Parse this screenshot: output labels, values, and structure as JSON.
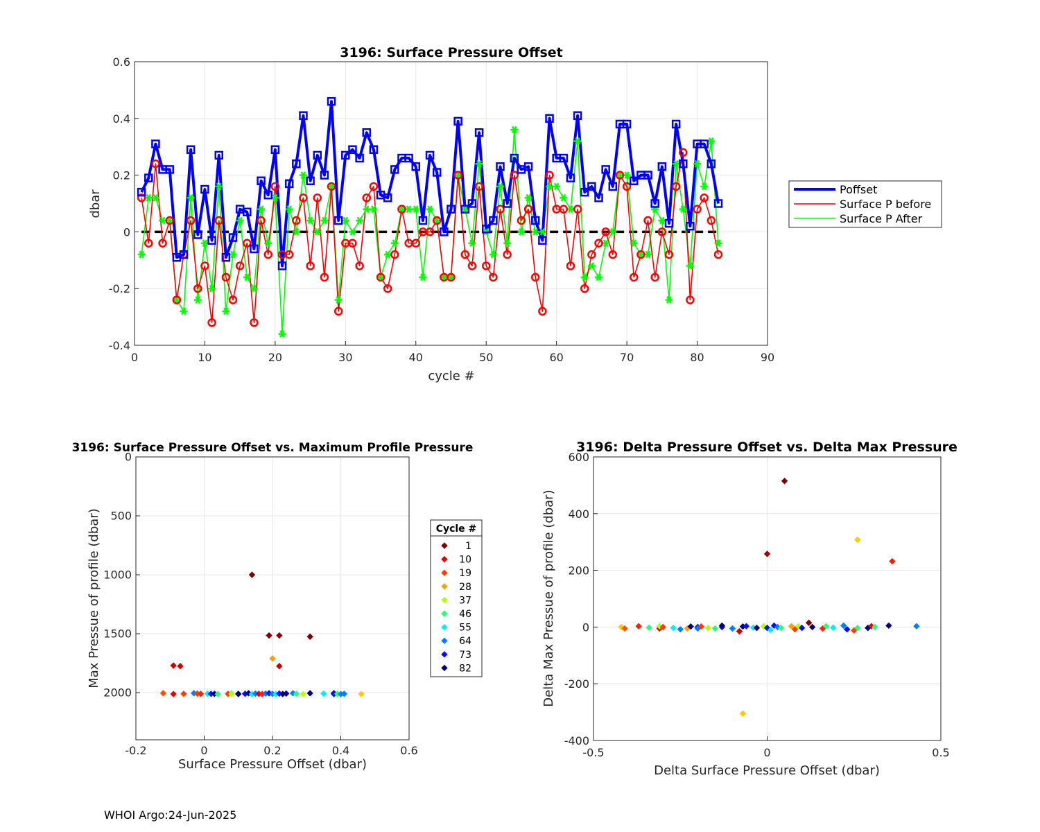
{
  "footer": "WHOI Argo:24-Jun-2025",
  "chart_data": [
    {
      "type": "line",
      "title": "3196: Surface Pressure Offset",
      "xlabel": "cycle #",
      "ylabel": "dbar",
      "xlim": [
        0,
        90
      ],
      "ylim": [
        -0.4,
        0.6
      ],
      "xticks": [
        0,
        10,
        20,
        30,
        40,
        50,
        60,
        70,
        80,
        90
      ],
      "yticks": [
        -0.4,
        -0.2,
        0,
        0.2,
        0.4,
        0.6
      ],
      "grid": true,
      "legend": "right",
      "x": [
        1,
        2,
        3,
        4,
        5,
        6,
        7,
        8,
        9,
        10,
        11,
        12,
        13,
        14,
        15,
        16,
        17,
        18,
        19,
        20,
        21,
        22,
        23,
        24,
        25,
        26,
        27,
        28,
        29,
        30,
        31,
        32,
        33,
        34,
        35,
        36,
        37,
        38,
        39,
        40,
        41,
        42,
        43,
        44,
        45,
        46,
        47,
        48,
        49,
        50,
        51,
        52,
        53,
        54,
        55,
        56,
        57,
        58,
        59,
        60,
        61,
        62,
        63,
        64,
        65,
        66,
        67,
        68,
        69,
        70,
        71,
        72,
        73,
        74,
        75,
        76,
        77,
        78,
        79,
        80,
        81,
        82,
        83
      ],
      "series": [
        {
          "name": "Poffset",
          "color": "#0000ff",
          "marker": "square",
          "values": [
            0.14,
            0.19,
            0.31,
            0.22,
            0.22,
            -0.09,
            -0.08,
            0.29,
            -0.01,
            0.15,
            -0.03,
            0.27,
            -0.09,
            -0.02,
            0.08,
            0.07,
            -0.06,
            0.18,
            0.13,
            0.29,
            -0.12,
            0.17,
            0.24,
            0.41,
            0.18,
            0.27,
            0.2,
            0.46,
            0.04,
            0.27,
            0.29,
            0.26,
            0.35,
            0.29,
            0.13,
            0.12,
            0.22,
            0.26,
            0.26,
            0.23,
            0.04,
            0.27,
            0.21,
            0,
            0.08,
            0.39,
            0.08,
            0.1,
            0.35,
            0.01,
            0.04,
            0.23,
            0.1,
            0.26,
            0.22,
            0.23,
            0.04,
            -0.03,
            0.4,
            0.26,
            0.26,
            0.19,
            0.41,
            0.14,
            0.16,
            0.12,
            0.22,
            0.16,
            0.38,
            0.38,
            0.18,
            0.2,
            0.2,
            0.1,
            0.23,
            0.03,
            0.38,
            0.24,
            0.02,
            0.31,
            0.31,
            0.24,
            0.1
          ]
        },
        {
          "name": "Surface P before",
          "color": "#ff0000",
          "marker": "circle",
          "values": [
            0.12,
            -0.04,
            0.24,
            -0.04,
            0.04,
            -0.24,
            -0.08,
            0.04,
            -0.2,
            -0.12,
            -0.32,
            0.04,
            -0.16,
            -0.24,
            -0.12,
            -0.04,
            -0.32,
            0.04,
            -0.08,
            0.16,
            -0.08,
            -0.08,
            0.04,
            0.12,
            -0.12,
            0.12,
            -0.16,
            0.16,
            -0.28,
            -0.04,
            -0.04,
            -0.12,
            0.12,
            0.16,
            -0.16,
            -0.2,
            -0.08,
            0.08,
            -0.04,
            -0.04,
            0,
            0,
            0.04,
            -0.16,
            -0.16,
            0.2,
            -0.08,
            -0.12,
            0.16,
            -0.12,
            -0.16,
            0.08,
            -0.08,
            0.2,
            0.04,
            0.08,
            -0.16,
            -0.28,
            0.2,
            0.08,
            0.08,
            -0.12,
            0.08,
            -0.2,
            -0.08,
            -0.04,
            0,
            -0.08,
            0.2,
            0.16,
            -0.16,
            -0.08,
            0.04,
            -0.16,
            0,
            -0.08,
            0.16,
            0.28,
            -0.24,
            0.08,
            0.12,
            0.04,
            -0.08
          ]
        },
        {
          "name": "Surface P After",
          "color": "#00ff00",
          "marker": "star",
          "values": [
            -0.08,
            0.12,
            0.12,
            0.04,
            0.04,
            -0.24,
            -0.28,
            0.12,
            -0.24,
            -0.04,
            -0.2,
            0.16,
            -0.28,
            -0.08,
            0.04,
            -0.16,
            -0.2,
            0.08,
            -0.04,
            0.12,
            -0.36,
            0.08,
            0,
            0.2,
            0.04,
            0,
            0.04,
            0.16,
            -0.24,
            0.04,
            0,
            0.04,
            0.08,
            0.08,
            -0.16,
            -0.08,
            -0.04,
            0.08,
            0.08,
            0.08,
            -0.16,
            0.08,
            0.04,
            -0.16,
            -0.16,
            0.2,
            0.08,
            -0.04,
            0.24,
            0,
            -0.08,
            0.16,
            -0.04,
            0.36,
            0,
            0.12,
            0,
            0,
            0.16,
            0.16,
            0.12,
            0.08,
            0.32,
            -0.16,
            -0.12,
            -0.16,
            -0.04,
            0,
            0.2,
            0.2,
            -0.04,
            -0.08,
            -0.08,
            0.08,
            0.04,
            -0.24,
            0.24,
            0.08,
            -0.12,
            0.24,
            0.16,
            0.32,
            -0.04
          ]
        }
      ],
      "reference_line": {
        "y": 0,
        "style": "dashed",
        "color": "#000000"
      }
    },
    {
      "type": "scatter",
      "title": "3196: Surface Pressure Offset vs. Maximum Profile Pressure",
      "xlabel": "Surface Pressure Offset (dbar)",
      "ylabel": "Max Pressue of profile (dbar)",
      "xlim": [
        -0.2,
        0.6
      ],
      "ylim": [
        0,
        2400
      ],
      "y_reversed": true,
      "xticks": [
        -0.2,
        0,
        0.2,
        0.4,
        0.6
      ],
      "xticklabels": [
        "-0.2",
        "0",
        "0.2",
        "0.4",
        "0.6"
      ],
      "yticks": [
        0,
        500,
        1000,
        1500,
        2000
      ],
      "grid": true,
      "legend_title": "Cycle #",
      "legend": [
        {
          "label": "1",
          "color": "#800000"
        },
        {
          "label": "10",
          "color": "#e60000"
        },
        {
          "label": "19",
          "color": "#ff3c00"
        },
        {
          "label": "28",
          "color": "#ffa000"
        },
        {
          "label": "37",
          "color": "#b4ff00"
        },
        {
          "label": "46",
          "color": "#28ff78"
        },
        {
          "label": "55",
          "color": "#00f0ff"
        },
        {
          "label": "64",
          "color": "#0080ff"
        },
        {
          "label": "73",
          "color": "#0010ff"
        },
        {
          "label": "82",
          "color": "#000080"
        }
      ],
      "points": [
        {
          "x": 0.14,
          "y": 1000,
          "color": "#800000"
        },
        {
          "x": 0.19,
          "y": 1515,
          "color": "#800000"
        },
        {
          "x": 0.22,
          "y": 1515,
          "color": "#8c0000"
        },
        {
          "x": 0.31,
          "y": 1525,
          "color": "#800000"
        },
        {
          "x": 0.22,
          "y": 1775,
          "color": "#c80000"
        },
        {
          "x": -0.09,
          "y": 1770,
          "color": "#c80000"
        },
        {
          "x": -0.07,
          "y": 1775,
          "color": "#d00000"
        },
        {
          "x": 0.2,
          "y": 1710,
          "color": "#ffa000"
        },
        {
          "x": -0.12,
          "y": 2005,
          "color": "#ff5000"
        },
        {
          "x": -0.09,
          "y": 2012,
          "color": "#e60000"
        },
        {
          "x": -0.06,
          "y": 2010,
          "color": "#ff3c00"
        },
        {
          "x": -0.03,
          "y": 2005,
          "color": "#0080ff"
        },
        {
          "x": -0.02,
          "y": 2008,
          "color": "#ff3c00"
        },
        {
          "x": -0.01,
          "y": 2010,
          "color": "#ff1e00"
        },
        {
          "x": 0.01,
          "y": 2008,
          "color": "#00f0ff"
        },
        {
          "x": 0.02,
          "y": 2010,
          "color": "#0010ff"
        },
        {
          "x": 0.03,
          "y": 2010,
          "color": "#000080"
        },
        {
          "x": 0.04,
          "y": 2012,
          "color": "#28ff78"
        },
        {
          "x": 0.07,
          "y": 2010,
          "color": "#ff3c00"
        },
        {
          "x": 0.08,
          "y": 2008,
          "color": "#28ff78"
        },
        {
          "x": 0.08,
          "y": 2012,
          "color": "#b4ff00"
        },
        {
          "x": 0.1,
          "y": 2010,
          "color": "#0010ff"
        },
        {
          "x": 0.1,
          "y": 2012,
          "color": "#000080"
        },
        {
          "x": 0.12,
          "y": 2008,
          "color": "#00f0ff"
        },
        {
          "x": 0.12,
          "y": 2010,
          "color": "#0010ff"
        },
        {
          "x": 0.13,
          "y": 2005,
          "color": "#000080"
        },
        {
          "x": 0.14,
          "y": 2012,
          "color": "#00f0ff"
        },
        {
          "x": 0.15,
          "y": 2008,
          "color": "#0080ff"
        },
        {
          "x": 0.16,
          "y": 2010,
          "color": "#e60000"
        },
        {
          "x": 0.17,
          "y": 2012,
          "color": "#ff1e00"
        },
        {
          "x": 0.18,
          "y": 2008,
          "color": "#0080ff"
        },
        {
          "x": 0.19,
          "y": 2005,
          "color": "#0010ff"
        },
        {
          "x": 0.2,
          "y": 2010,
          "color": "#0080ff"
        },
        {
          "x": 0.21,
          "y": 2012,
          "color": "#00f0ff"
        },
        {
          "x": 0.22,
          "y": 2008,
          "color": "#0010ff"
        },
        {
          "x": 0.23,
          "y": 2010,
          "color": "#00f0ff"
        },
        {
          "x": 0.23,
          "y": 2012,
          "color": "#000080"
        },
        {
          "x": 0.24,
          "y": 2008,
          "color": "#000080"
        },
        {
          "x": 0.26,
          "y": 2005,
          "color": "#0080ff"
        },
        {
          "x": 0.27,
          "y": 2010,
          "color": "#28ff78"
        },
        {
          "x": 0.29,
          "y": 2012,
          "color": "#b4ff00"
        },
        {
          "x": 0.31,
          "y": 2005,
          "color": "#000080"
        },
        {
          "x": 0.35,
          "y": 2008,
          "color": "#00f0ff"
        },
        {
          "x": 0.38,
          "y": 2005,
          "color": "#000080"
        },
        {
          "x": 0.38,
          "y": 2012,
          "color": "#0010ff"
        },
        {
          "x": 0.39,
          "y": 2010,
          "color": "#28ff78"
        },
        {
          "x": 0.4,
          "y": 2012,
          "color": "#0080ff"
        },
        {
          "x": 0.41,
          "y": 2010,
          "color": "#0080ff"
        },
        {
          "x": 0.46,
          "y": 2012,
          "color": "#ffc800"
        }
      ]
    },
    {
      "type": "scatter",
      "title": "3196: Delta Pressure Offset vs. Delta Max Pressure",
      "xlabel": "Delta Surface Pressure Offset (dbar)",
      "ylabel": "Delta Max Pressue of profile (dbar)",
      "xlim": [
        -0.5,
        0.5
      ],
      "ylim": [
        -400,
        600
      ],
      "xticks": [
        -0.5,
        0,
        0.5
      ],
      "xticklabels": [
        "-0.5",
        "0",
        "0.5"
      ],
      "yticks": [
        -400,
        -200,
        0,
        200,
        400,
        600
      ],
      "grid": true,
      "points": [
        {
          "x": 0.05,
          "y": 515,
          "color": "#800000"
        },
        {
          "x": 0,
          "y": 258,
          "color": "#a00000"
        },
        {
          "x": 0.26,
          "y": 308,
          "color": "#ffc800"
        },
        {
          "x": 0.36,
          "y": 232,
          "color": "#ff1e00"
        },
        {
          "x": -0.07,
          "y": -305,
          "color": "#ffc800"
        },
        {
          "x": -0.42,
          "y": 0,
          "color": "#ffc800"
        },
        {
          "x": -0.41,
          "y": -5,
          "color": "#ff5000"
        },
        {
          "x": -0.37,
          "y": 3,
          "color": "#ff1e00"
        },
        {
          "x": -0.34,
          "y": -2,
          "color": "#28ff78"
        },
        {
          "x": -0.31,
          "y": -5,
          "color": "#e60000"
        },
        {
          "x": -0.31,
          "y": 3,
          "color": "#b4ff00"
        },
        {
          "x": -0.3,
          "y": 0,
          "color": "#ff3c00"
        },
        {
          "x": -0.27,
          "y": -3,
          "color": "#00f0ff"
        },
        {
          "x": -0.25,
          "y": -8,
          "color": "#0080ff"
        },
        {
          "x": -0.23,
          "y": -5,
          "color": "#ffa000"
        },
        {
          "x": -0.22,
          "y": 2,
          "color": "#000080"
        },
        {
          "x": -0.2,
          "y": 0,
          "color": "#0010ff"
        },
        {
          "x": -0.2,
          "y": -5,
          "color": "#0080ff"
        },
        {
          "x": -0.19,
          "y": 2,
          "color": "#ff3c00"
        },
        {
          "x": -0.17,
          "y": -3,
          "color": "#b4ff00"
        },
        {
          "x": -0.15,
          "y": -5,
          "color": "#28ff78"
        },
        {
          "x": -0.13,
          "y": 0,
          "color": "#0010ff"
        },
        {
          "x": -0.13,
          "y": 5,
          "color": "#000080"
        },
        {
          "x": -0.1,
          "y": -5,
          "color": "#0080ff"
        },
        {
          "x": -0.08,
          "y": -15,
          "color": "#c80000"
        },
        {
          "x": -0.07,
          "y": 2,
          "color": "#000080"
        },
        {
          "x": -0.06,
          "y": 3,
          "color": "#0010ff"
        },
        {
          "x": -0.04,
          "y": -2,
          "color": "#00f0ff"
        },
        {
          "x": -0.03,
          "y": -3,
          "color": "#000080"
        },
        {
          "x": -0.01,
          "y": 3,
          "color": "#b4ff00"
        },
        {
          "x": 0,
          "y": -3,
          "color": "#0010ff"
        },
        {
          "x": 0.01,
          "y": -10,
          "color": "#00f0ff"
        },
        {
          "x": 0.02,
          "y": 5,
          "color": "#0010ff"
        },
        {
          "x": 0.03,
          "y": 0,
          "color": "#0080ff"
        },
        {
          "x": 0.04,
          "y": -3,
          "color": "#28ff78"
        },
        {
          "x": 0.07,
          "y": 3,
          "color": "#ffa000"
        },
        {
          "x": 0.08,
          "y": -8,
          "color": "#ff3c00"
        },
        {
          "x": 0.09,
          "y": 3,
          "color": "#b4ff00"
        },
        {
          "x": 0.1,
          "y": -3,
          "color": "#0010ff"
        },
        {
          "x": 0.12,
          "y": 15,
          "color": "#800000"
        },
        {
          "x": 0.13,
          "y": 0,
          "color": "#000080"
        },
        {
          "x": 0.16,
          "y": -5,
          "color": "#ff1e00"
        },
        {
          "x": 0.17,
          "y": 3,
          "color": "#28ff78"
        },
        {
          "x": 0.19,
          "y": -2,
          "color": "#00f0ff"
        },
        {
          "x": 0.22,
          "y": 5,
          "color": "#0080ff"
        },
        {
          "x": 0.23,
          "y": -8,
          "color": "#0010ff"
        },
        {
          "x": 0.25,
          "y": -12,
          "color": "#ff3c00"
        },
        {
          "x": 0.26,
          "y": -3,
          "color": "#28ff78"
        },
        {
          "x": 0.29,
          "y": -3,
          "color": "#000080"
        },
        {
          "x": 0.3,
          "y": 3,
          "color": "#e60000"
        },
        {
          "x": 0.31,
          "y": 0,
          "color": "#28ff78"
        },
        {
          "x": 0.35,
          "y": 5,
          "color": "#000080"
        },
        {
          "x": 0.43,
          "y": 3,
          "color": "#0080ff"
        }
      ]
    }
  ]
}
